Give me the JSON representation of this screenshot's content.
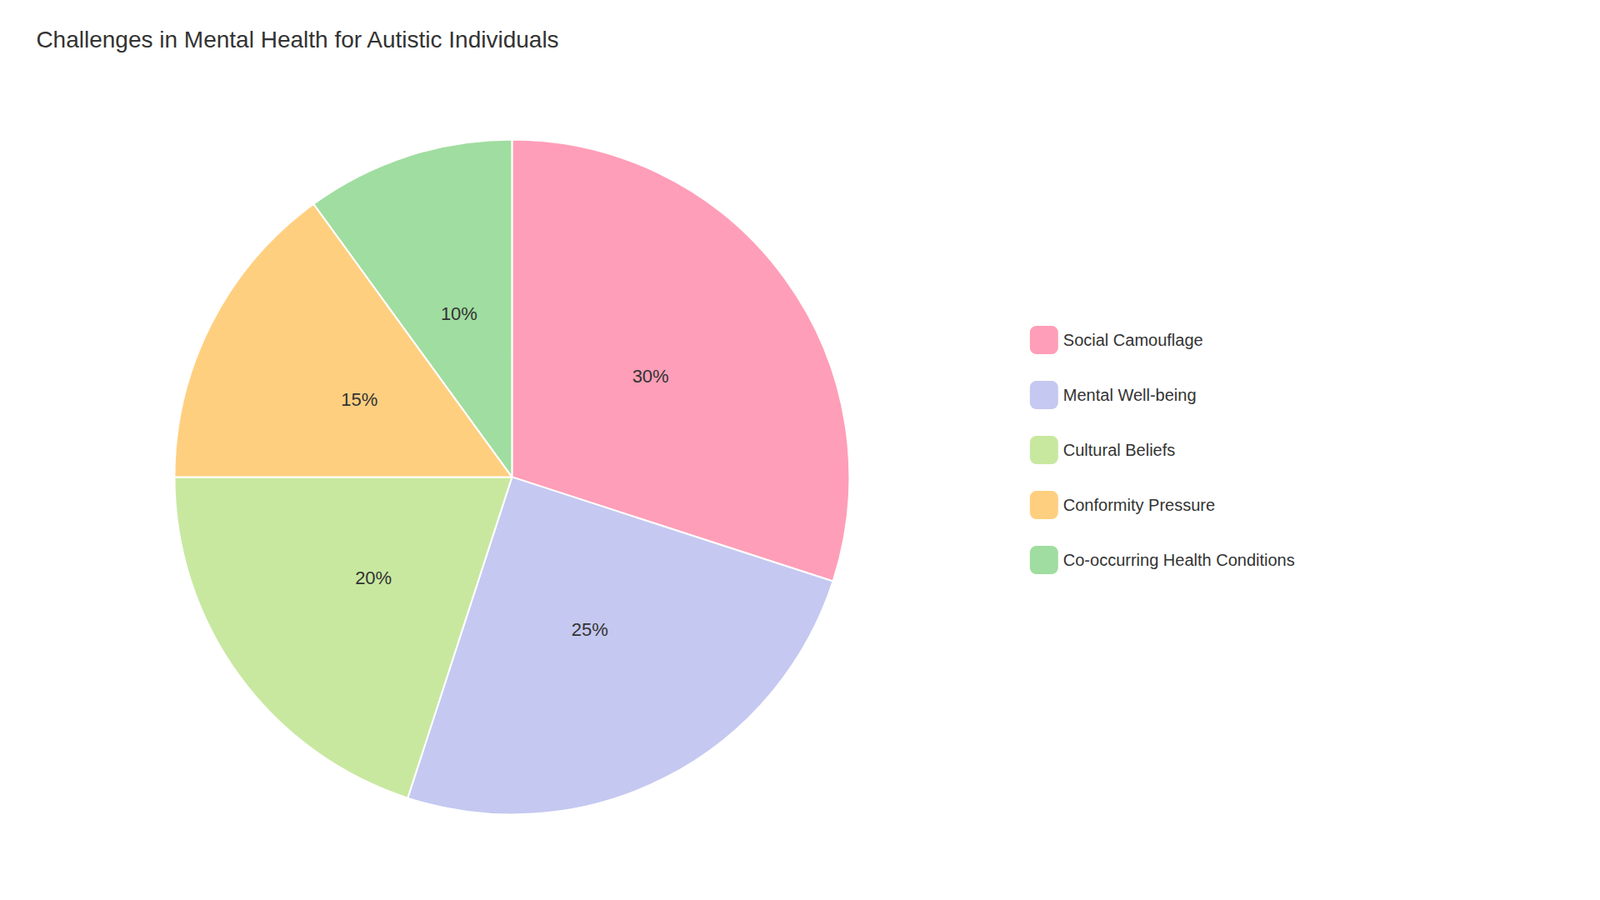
{
  "chart_data": {
    "type": "pie",
    "title": "Challenges in Mental Health for Autistic Individuals",
    "categories": [
      "Social Camouflage",
      "Mental Well-being",
      "Cultural Beliefs",
      "Conformity Pressure",
      "Co-occurring Health Conditions"
    ],
    "values": [
      30,
      25,
      20,
      15,
      10
    ],
    "value_labels": [
      "30%",
      "25%",
      "20%",
      "15%",
      "10%"
    ],
    "colors": [
      "#FF9EB8",
      "#C5C8F0",
      "#C8E8A0",
      "#FFCF80",
      "#A0DDA0"
    ],
    "data_labels": true,
    "legend": "right"
  }
}
